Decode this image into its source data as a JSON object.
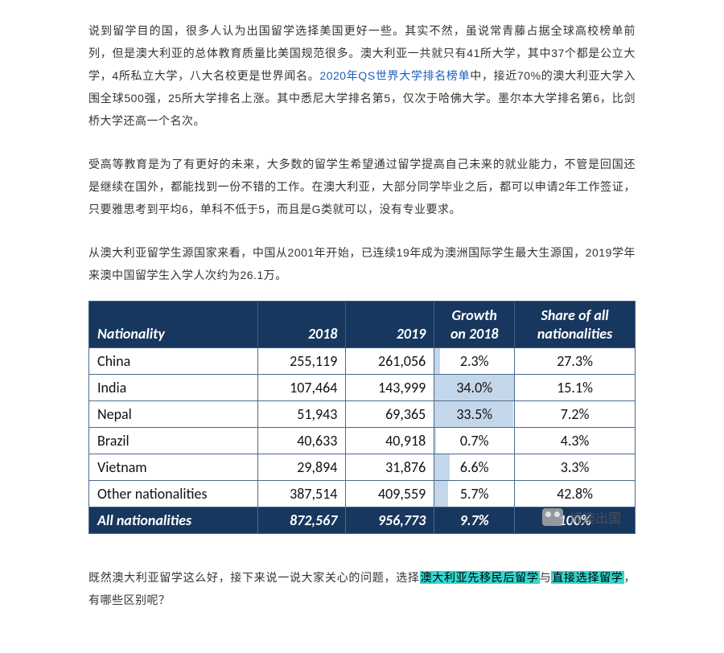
{
  "paragraphs": {
    "p1a": "说到留学目的国，很多人认为出国留学选择美国更好一些。其实不然，虽说常青藤占据全球高校榜单前列，但是澳大利亚的总体教育质量比美国规范很多。澳大利亚一共就只有41所大学，其中37个都是公立大学，4所私立大学，八大名校更是世界闻名。",
    "p1_link": "2020年QS世界大学排名榜单",
    "p1b": "中，接近70%的澳大利亚大学入围全球500强，25所大学排名上涨。其中悉尼大学排名第5，仅次于哈佛大学。墨尔本大学排名第6，比剑桥大学还高一个名次。",
    "p2": "受高等教育是为了有更好的未来，大多数的留学生希望通过留学提高自己未来的就业能力，不管是回国还是继续在国外，都能找到一份不错的工作。在澳大利亚，大部分同学毕业之后，都可以申请2年工作签证，只要雅思考到平均6，单科不低于5，而且是G类就可以，没有专业要求。",
    "p3": "从澳大利亚留学生源国家来看，中国从2001年开始，已连续19年成为澳洲国际学生最大生源国，2019学年来澳中国留学生入学人次约为26.1万。",
    "p4a": "既然澳大利亚留学这么好，接下来说一说大家关心的问题，选择",
    "p4_hl1": "澳大利亚先移民后留学",
    "p4b": "与",
    "p4_hl2": "直接选择留学",
    "p4c": "，有哪些区别呢？"
  },
  "table": {
    "headers": {
      "nationality": "Nationality",
      "y2018": "2018",
      "y2019": "2019",
      "growth_l1": "Growth",
      "growth_l2": "on 2018",
      "share_l1": "Share of all",
      "share_l2": "nationalities"
    },
    "rows": [
      {
        "nat": "China",
        "y2018": "255,119",
        "y2019": "261,056",
        "growth": "2.3%",
        "growth_bar": 0.07,
        "share": "27.3%"
      },
      {
        "nat": "India",
        "y2018": "107,464",
        "y2019": "143,999",
        "growth": "34.0%",
        "growth_bar": 1.0,
        "share": "15.1%"
      },
      {
        "nat": "Nepal",
        "y2018": "51,943",
        "y2019": "69,365",
        "growth": "33.5%",
        "growth_bar": 0.985,
        "share": "7.2%"
      },
      {
        "nat": "Brazil",
        "y2018": "40,633",
        "y2019": "40,918",
        "growth": "0.7%",
        "growth_bar": 0.02,
        "share": "4.3%"
      },
      {
        "nat": "Vietnam",
        "y2018": "29,894",
        "y2019": "31,876",
        "growth": "6.6%",
        "growth_bar": 0.19,
        "share": "3.3%"
      },
      {
        "nat": "Other nationalities",
        "y2018": "387,514",
        "y2019": "409,559",
        "growth": "5.7%",
        "growth_bar": 0.17,
        "share": "42.8%"
      }
    ],
    "footer": {
      "nat": "All nationalities",
      "y2018": "872,567",
      "y2019": "956,773",
      "growth": "9.7%",
      "share": "100%"
    },
    "style": {
      "header_bg": "#17375e",
      "header_fg": "#ffffff",
      "border_color": "#4a6a8e",
      "bar_fill": "#c4d6ea",
      "body_font": "Calibri",
      "header_italic": true,
      "font_size_pt": 14
    }
  },
  "watermark": {
    "text": "博澳出国"
  },
  "colors": {
    "link_blue": "#1b5fbf",
    "highlight_bg": "#35d6d0",
    "text": "#333333",
    "page_bg": "#ffffff"
  }
}
